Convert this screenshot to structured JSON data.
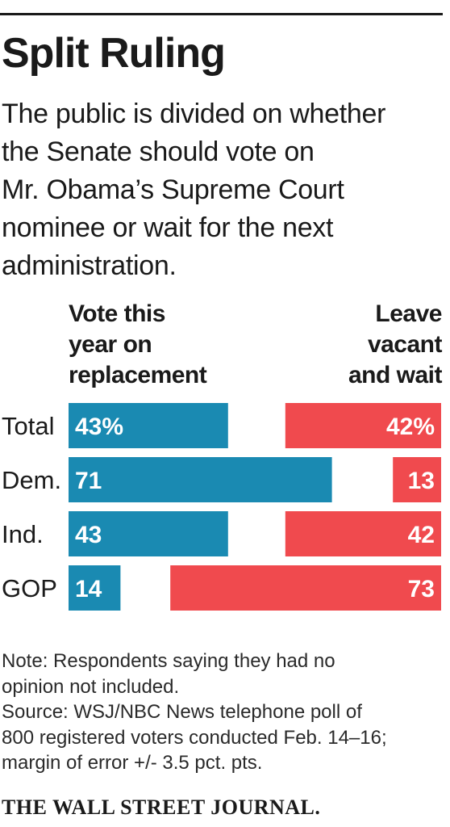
{
  "title": "Split Ruling",
  "subtitle_lines": [
    "The public is divided on whether",
    "the Senate should vote on",
    "Mr. Obama’s Supreme Court",
    "nominee or wait for the next",
    "administration."
  ],
  "note_lines": [
    "Note: Respondents saying they had no",
    "opinion not included.",
    "Source: WSJ/NBC News telephone poll of",
    "800 registered voters conducted Feb. 14–16;",
    "margin of error +/- 3.5 pct. pts."
  ],
  "logo_text": "THE WALL STREET JOURNAL.",
  "colors": {
    "vote": "#1a8ab2",
    "leave": "#f04a4e",
    "text": "#1a1a1a"
  },
  "chart_data": {
    "type": "bar",
    "orientation": "horizontal-diverging",
    "categories": [
      "Total",
      "Dem.",
      "Ind.",
      "GOP"
    ],
    "category_lines": [
      [
        "Vote this",
        "year on",
        "replacement"
      ],
      [
        "Leave",
        "vacant",
        "and wait"
      ]
    ],
    "series": [
      {
        "name": "Vote this year on replacement",
        "values": [
          43,
          71,
          43,
          14
        ],
        "labels": [
          "43%",
          "71",
          "43",
          "14"
        ],
        "color": "#1a8ab2",
        "anchor": "left"
      },
      {
        "name": "Leave vacant and wait",
        "values": [
          42,
          13,
          42,
          73
        ],
        "labels": [
          "42%",
          "13",
          "42",
          "73"
        ],
        "color": "#f04a4e",
        "anchor": "right"
      }
    ],
    "xlim": [
      0,
      100
    ],
    "grid": false,
    "legend": "column headers above bars"
  }
}
